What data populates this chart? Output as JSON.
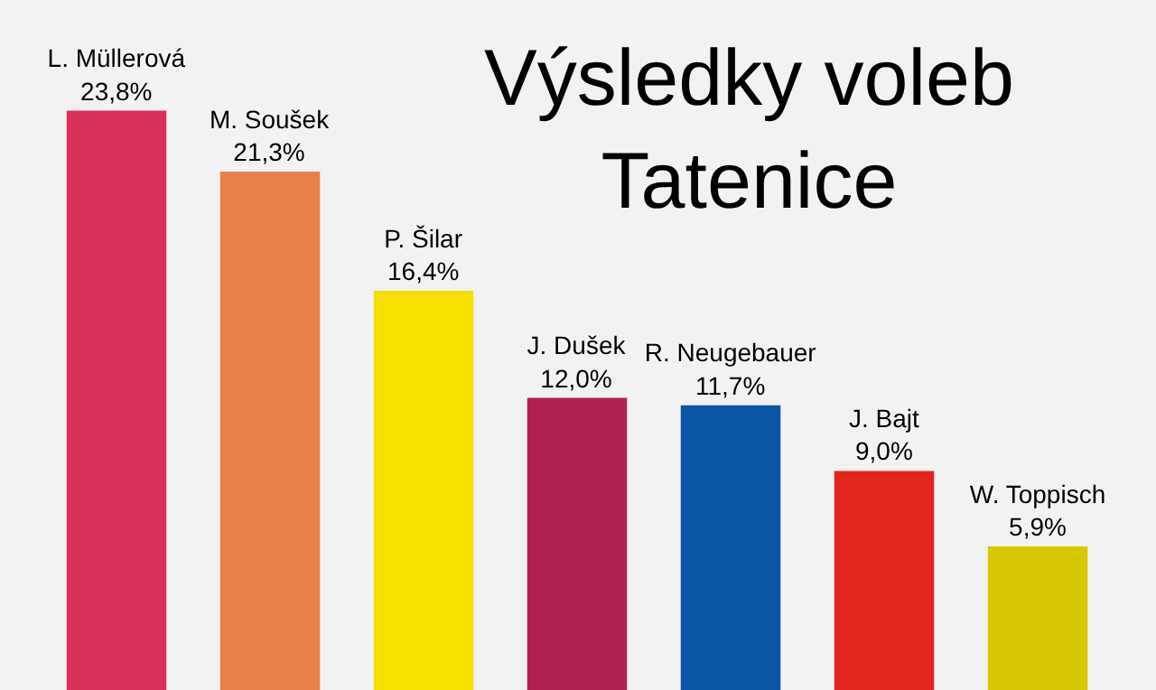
{
  "chart_data": {
    "type": "bar",
    "title": "Výsledky voleb\nTatenice",
    "categories": [
      "L. Müllerová",
      "M. Soušek",
      "P. Šilar",
      "J. Dušek",
      "R. Neugebauer",
      "J. Bajt",
      "W. Toppisch"
    ],
    "values": [
      23.8,
      21.3,
      16.4,
      12.0,
      11.7,
      9.0,
      5.9
    ],
    "value_labels": [
      "23,8%",
      "21,3%",
      "16,4%",
      "12,0%",
      "11,7%",
      "9,0%",
      "5,9%"
    ],
    "colors": [
      "#d8305a",
      "#e8804a",
      "#f5e000",
      "#b02050",
      "#0a56a4",
      "#e0261e",
      "#d8c800"
    ],
    "grid": false
  }
}
